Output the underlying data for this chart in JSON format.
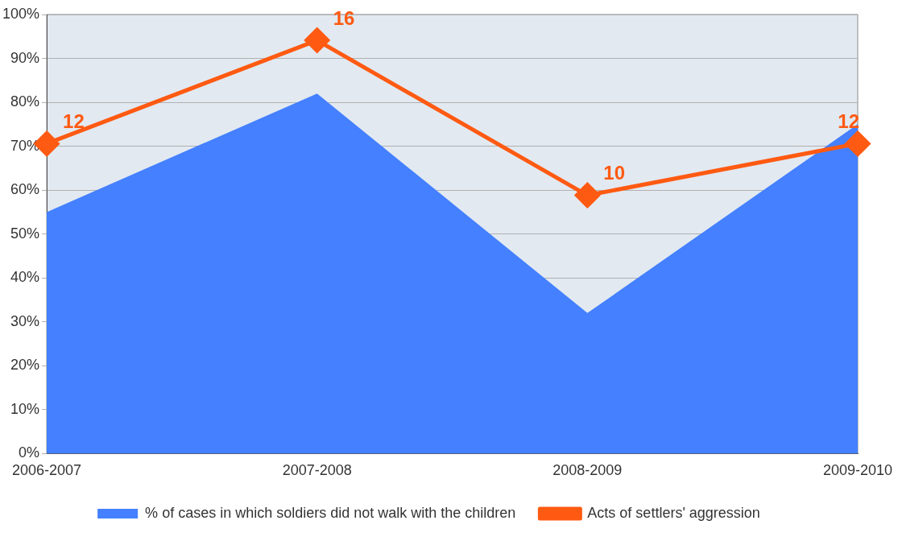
{
  "chart_data": {
    "type": "area",
    "categories": [
      "2006-2007",
      "2007-2008",
      "2008-2009",
      "2009-2010"
    ],
    "series": [
      {
        "name": "% of cases in which soldiers did not walk with the children",
        "color": "#4480ff",
        "values": [
          55,
          82,
          32,
          75
        ]
      },
      {
        "name": "Acts of settlers' aggression",
        "type": "line",
        "axis": "y2",
        "color": "#ff5a12",
        "values": [
          12,
          16,
          10,
          12
        ],
        "value_labels": [
          "12",
          "16",
          "10",
          "12"
        ],
        "marker": "diamond"
      }
    ],
    "ylim": [
      0,
      100
    ],
    "yticks": [
      {
        "value": 0,
        "label": "0%"
      },
      {
        "value": 10,
        "label": "10%"
      },
      {
        "value": 20,
        "label": "20%"
      },
      {
        "value": 30,
        "label": "30%"
      },
      {
        "value": 40,
        "label": "40%"
      },
      {
        "value": 50,
        "label": "50%"
      },
      {
        "value": 60,
        "label": "60%"
      },
      {
        "value": 70,
        "label": "70%"
      },
      {
        "value": 80,
        "label": "80%"
      },
      {
        "value": 90,
        "label": "90%"
      },
      {
        "value": 100,
        "label": "100%"
      }
    ],
    "y2lim": [
      0,
      17
    ],
    "grid": "y",
    "legend": "bottom",
    "tick_labels": "xy"
  }
}
